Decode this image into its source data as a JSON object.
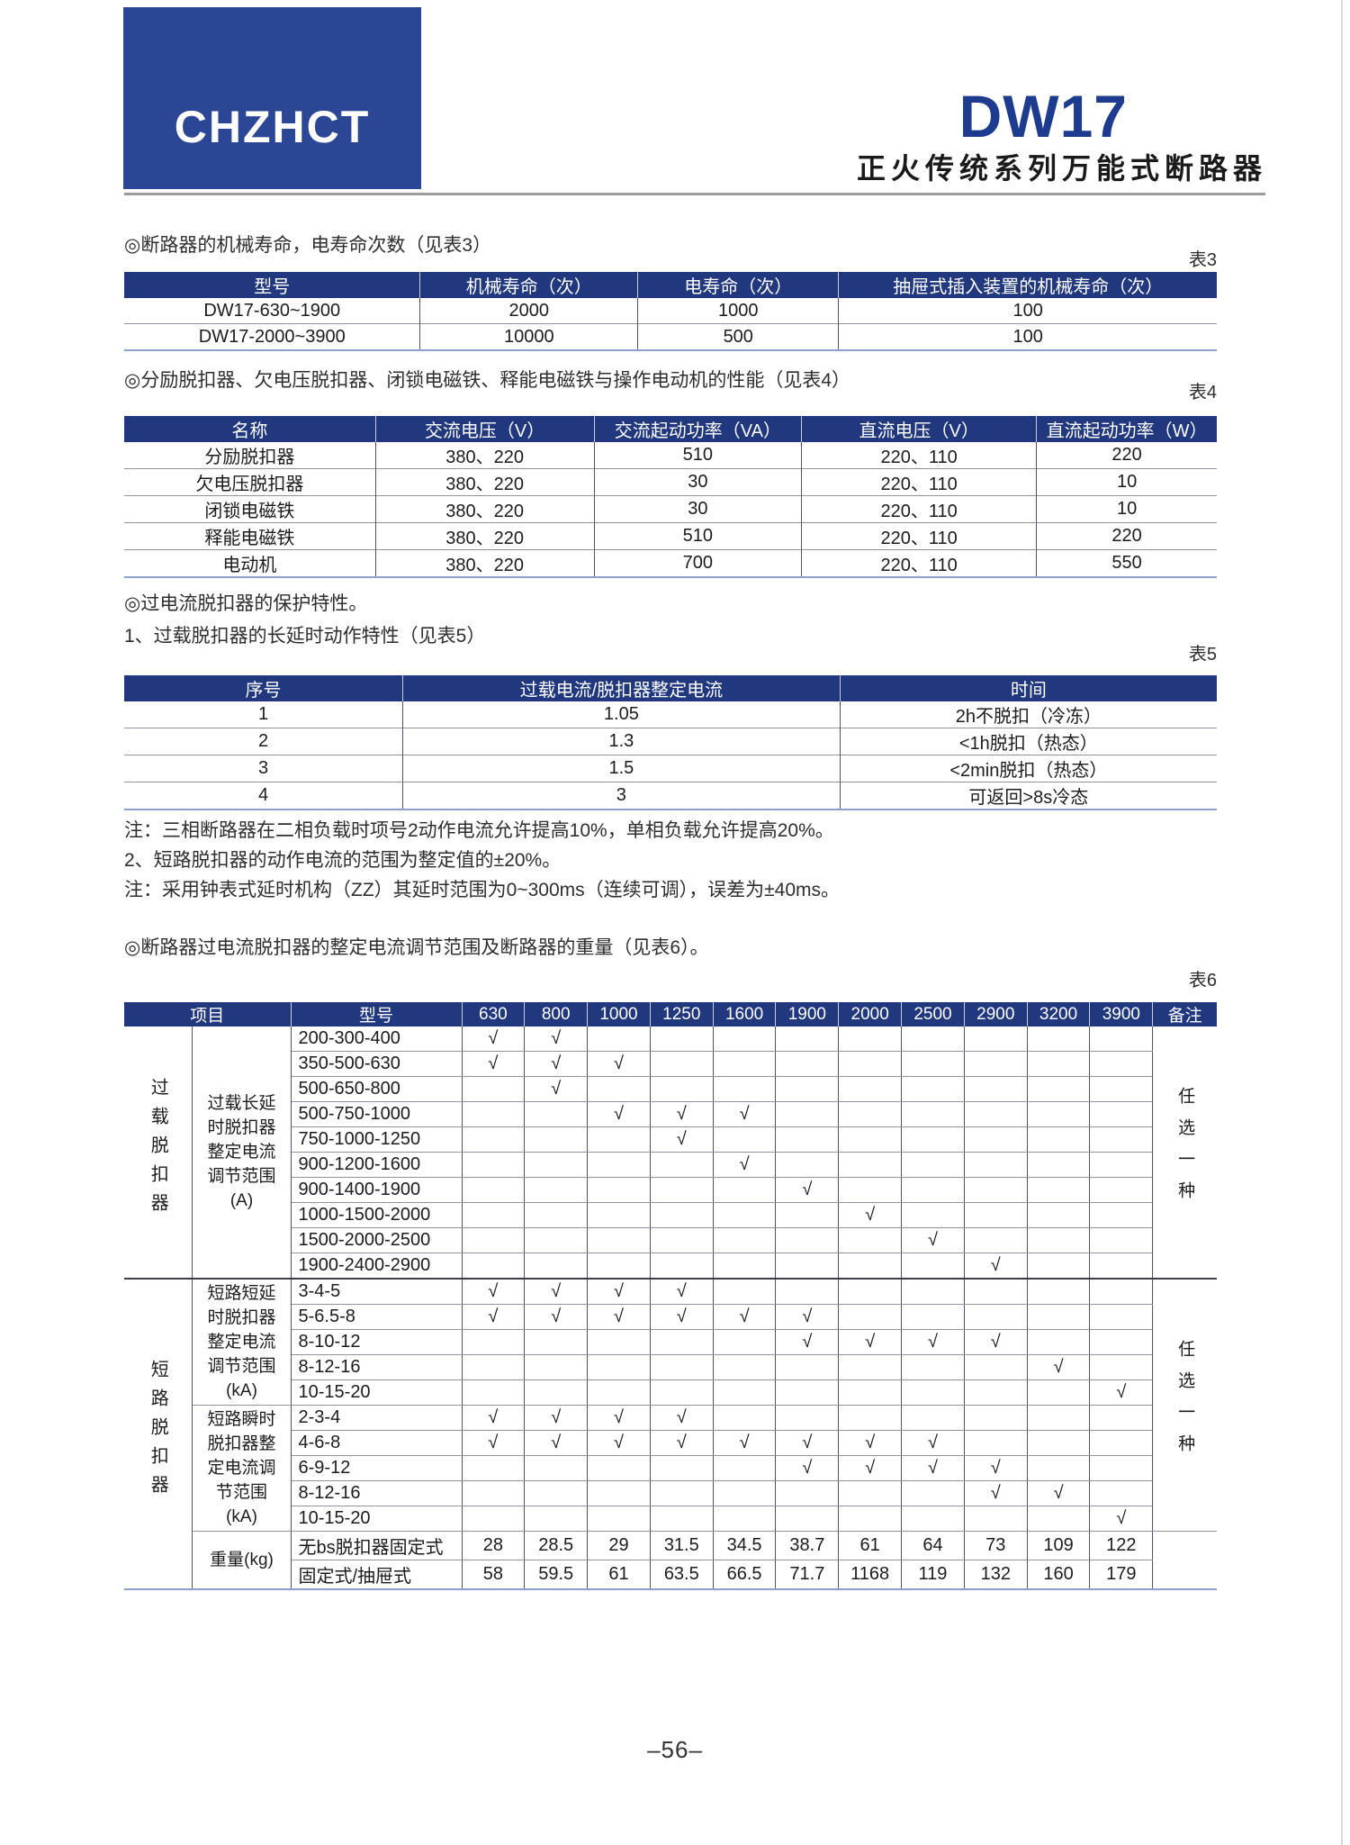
{
  "header": {
    "logo_text": "CHZHCT",
    "product_code": "DW17",
    "series_subtitle": "正火传统系列万能式断路器"
  },
  "sections": {
    "s3_title": "◎断路器的机械寿命，电寿命次数（见表3）",
    "t3_label": "表3",
    "s4_title": "◎分励脱扣器、欠电压脱扣器、闭锁电磁铁、释能电磁铁与操作电动机的性能（见表4）",
    "t4_label": "表4",
    "s5_intro": "◎过电流脱扣器的保护特性。",
    "s5_sub": "1、过载脱扣器的长延时动作特性（见表5）",
    "t5_label": "表5",
    "note1": "注：三相断路器在二相负载时项号2动作电流允许提高10%，单相负载允许提高20%。",
    "note2": "2、短路脱扣器的动作电流的范围为整定值的±20%。",
    "note3": "注：采用钟表式延时机构（ZZ）其延时范围为0~300ms（连续可调），误差为±40ms。",
    "s6_title": "◎断路器过电流脱扣器的整定电流调节范围及断路器的重量（见表6）。",
    "t6_label": "表6"
  },
  "table3": {
    "headers": [
      "型号",
      "机械寿命（次）",
      "电寿命（次）",
      "抽屉式插入装置的机械寿命（次）"
    ],
    "rows": [
      [
        "DW17-630~1900",
        "2000",
        "1000",
        "100"
      ],
      [
        "DW17-2000~3900",
        "10000",
        "500",
        "100"
      ]
    ]
  },
  "table4": {
    "headers": [
      "名称",
      "交流电压（V）",
      "交流起动功率（VA）",
      "直流电压（V）",
      "直流起动功率（W）"
    ],
    "rows": [
      [
        "分励脱扣器",
        "380、220",
        "510",
        "220、110",
        "220"
      ],
      [
        "欠电压脱扣器",
        "380、220",
        "30",
        "220、110",
        "10"
      ],
      [
        "闭锁电磁铁",
        "380、220",
        "30",
        "220、110",
        "10"
      ],
      [
        "释能电磁铁",
        "380、220",
        "510",
        "220、110",
        "220"
      ],
      [
        "电动机",
        "380、220",
        "700",
        "220、110",
        "550"
      ]
    ]
  },
  "table5": {
    "headers": [
      "序号",
      "过载电流/脱扣器整定电流",
      "时间"
    ],
    "rows": [
      [
        "1",
        "1.05",
        "2h不脱扣（冷冻）"
      ],
      [
        "2",
        "1.3",
        "<1h脱扣（热态）"
      ],
      [
        "3",
        "1.5",
        "<2min脱扣（热态）"
      ],
      [
        "4",
        "3",
        "可返回>8s冷态"
      ]
    ]
  },
  "table6": {
    "head_item": "项目",
    "head_model": "型号",
    "head_remark": "备注",
    "ratings": [
      "630",
      "800",
      "1000",
      "1250",
      "1600",
      "1900",
      "2000",
      "2500",
      "2900",
      "3200",
      "3900"
    ],
    "side_overload": "过载脱扣器",
    "side_short": "短路脱扣器",
    "sub_overload": "过载长延\n时脱扣器\n整定电流\n调节范围\n(A)",
    "sub_short_delay": "短路短延\n时脱扣器\n整定电流\n调节范围\n(kA)",
    "sub_instant": "短路瞬时\n脱扣器整\n定电流调\n节范围\n(kA)",
    "weight_label": "重量(kg)",
    "remark_overload": "任选一种",
    "remark_short": "任选一种",
    "overload_rows": [
      {
        "model": "200-300-400",
        "checks": [
          "630",
          "800"
        ]
      },
      {
        "model": "350-500-630",
        "checks": [
          "630",
          "800",
          "1000"
        ]
      },
      {
        "model": "500-650-800",
        "checks": [
          "800"
        ]
      },
      {
        "model": "500-750-1000",
        "checks": [
          "1000",
          "1250",
          "1600"
        ]
      },
      {
        "model": "750-1000-1250",
        "checks": [
          "1250"
        ]
      },
      {
        "model": "900-1200-1600",
        "checks": [
          "1600"
        ]
      },
      {
        "model": "900-1400-1900",
        "checks": [
          "1900"
        ]
      },
      {
        "model": "1000-1500-2000",
        "checks": [
          "2000"
        ]
      },
      {
        "model": "1500-2000-2500",
        "checks": [
          "2500"
        ]
      },
      {
        "model": "1900-2400-2900",
        "checks": [
          "2900"
        ]
      }
    ],
    "short_delay_rows": [
      {
        "model": "3-4-5",
        "checks": [
          "630",
          "800",
          "1000",
          "1250"
        ]
      },
      {
        "model": "5-6.5-8",
        "checks": [
          "630",
          "800",
          "1000",
          "1250",
          "1600",
          "1900"
        ]
      },
      {
        "model": "8-10-12",
        "checks": [
          "1900",
          "2000",
          "2500",
          "2900"
        ]
      },
      {
        "model": "8-12-16",
        "checks": [
          "3200"
        ]
      },
      {
        "model": "10-15-20",
        "checks": [
          "3900"
        ]
      }
    ],
    "instant_rows": [
      {
        "model": "2-3-4",
        "checks": [
          "630",
          "800",
          "1000",
          "1250"
        ]
      },
      {
        "model": "4-6-8",
        "checks": [
          "630",
          "800",
          "1000",
          "1250",
          "1600",
          "1900",
          "2000",
          "2500"
        ]
      },
      {
        "model": "6-9-12",
        "checks": [
          "1900",
          "2000",
          "2500",
          "2900"
        ]
      },
      {
        "model": "8-12-16",
        "checks": [
          "2900",
          "3200"
        ]
      },
      {
        "model": "10-15-20",
        "checks": [
          "3900"
        ]
      }
    ],
    "weight_rows": [
      {
        "model": "无bs脱扣器固定式",
        "values": [
          "28",
          "28.5",
          "29",
          "31.5",
          "34.5",
          "38.7",
          "61",
          "64",
          "73",
          "109",
          "122"
        ]
      },
      {
        "model": "固定式/抽屉式",
        "values": [
          "58",
          "59.5",
          "61",
          "63.5",
          "66.5",
          "71.7",
          "1168",
          "119",
          "132",
          "160",
          "179"
        ]
      }
    ]
  },
  "footer": {
    "page_number": "–56–"
  },
  "misc": {
    "check_mark": "√"
  },
  "colors": {
    "header_navy": "#21387f",
    "logo_blue": "#2a4695",
    "title_blue": "#1d3c8f",
    "table_bottom_border": "#8ea0c8",
    "row_separator": "#9094a0"
  }
}
